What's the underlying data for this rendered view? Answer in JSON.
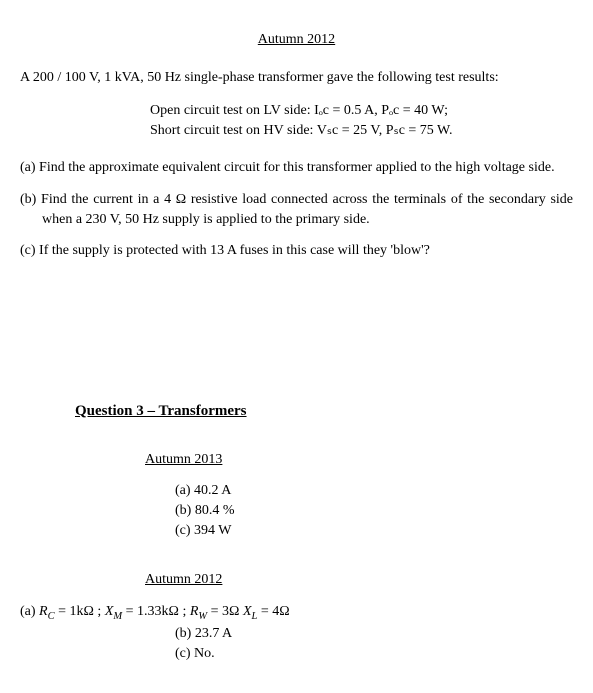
{
  "header": {
    "title": "Autumn 2012"
  },
  "problem": {
    "intro": "A 200 / 100 V, 1 kVA, 50 Hz single-phase transformer gave the following test results:",
    "oc_line": "Open circuit test on LV side:  Iₒc = 0.5 A, Pₒc = 40 W;",
    "sc_line": "Short circuit test on HV side:  Vₛc = 25 V, Pₛc = 75 W.",
    "part_a": "(a) Find the approximate equivalent circuit for this transformer applied to the high voltage side.",
    "part_b": "(b) Find the current in a 4 Ω resistive load connected across the terminals of the secondary side when a 230 V, 50 Hz supply is applied to the primary side.",
    "part_c": "(c) If the supply is protected with 13 A fuses in this case will they 'blow'?"
  },
  "answers": {
    "q3_title": "Question 3 – Transformers",
    "a2013": {
      "title": "Autumn 2013",
      "a": "(a) 40.2 A",
      "b": "(b) 80.4 %",
      "c": "(c) 394 W"
    },
    "a2012": {
      "title": "Autumn 2012",
      "a_prefix": "(a) ",
      "a_rc": "R",
      "a_rc_sub": "C",
      "a_rc_val": " = 1kΩ ; ",
      "a_xm": "X",
      "a_xm_sub": "M",
      "a_xm_val": " = 1.33kΩ ; ",
      "a_rw": "R",
      "a_rw_sub": "W",
      "a_rw_val": " = 3Ω  ",
      "a_xl": "X",
      "a_xl_sub": "L",
      "a_xl_val": " = 4Ω",
      "b": "(b) 23.7 A",
      "c": "(c) No."
    }
  }
}
